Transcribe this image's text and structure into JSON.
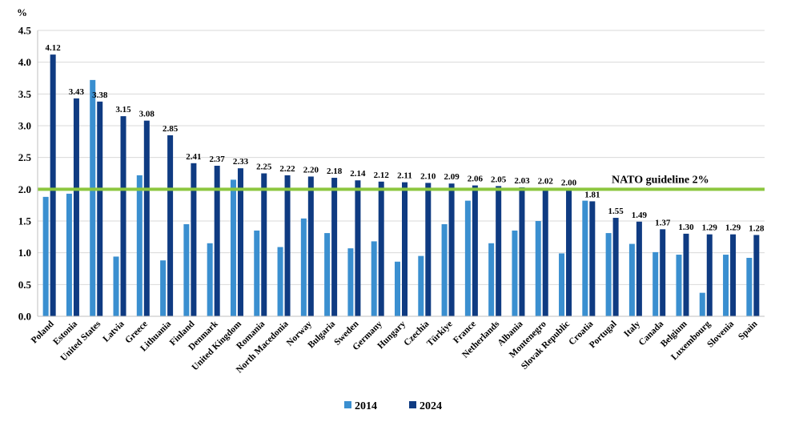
{
  "chart_data": {
    "type": "bar",
    "title": "",
    "ylabel": "%",
    "xlabel": "",
    "ylim": [
      0,
      4.5
    ],
    "yticks": [
      "0.0",
      "0.5",
      "1.0",
      "1.5",
      "2.0",
      "2.5",
      "3.0",
      "3.5",
      "4.0",
      "4.5"
    ],
    "grid": "horizontal",
    "legend_position": "bottom",
    "categories": [
      "Poland",
      "Estonia",
      "United States",
      "Latvia",
      "Greece",
      "Lithuania",
      "Finland",
      "Denmark",
      "United Kingdom",
      "Romania",
      "North Macedonia",
      "Norway",
      "Bulgaria",
      "Sweden",
      "Germany",
      "Hungary",
      "Czechia",
      "Türkiye",
      "France",
      "Netherlands",
      "Albania",
      "Montenegro",
      "Slovak Republic",
      "Croatia",
      "Portugal",
      "Italy",
      "Canada",
      "Belgium",
      "Luxembourg",
      "Slovenia",
      "Spain"
    ],
    "series": [
      {
        "name": "2014",
        "color": "#3a8fd0",
        "values": [
          1.88,
          1.93,
          3.72,
          0.94,
          2.22,
          0.88,
          1.45,
          1.15,
          2.15,
          1.35,
          1.09,
          1.54,
          1.31,
          1.07,
          1.18,
          0.86,
          0.95,
          1.45,
          1.82,
          1.15,
          1.35,
          1.5,
          0.99,
          1.82,
          1.31,
          1.14,
          1.01,
          0.97,
          0.37,
          0.97,
          0.92
        ]
      },
      {
        "name": "2024",
        "color": "#0f3b82",
        "values": [
          4.12,
          3.43,
          3.38,
          3.15,
          3.08,
          2.85,
          2.41,
          2.37,
          2.33,
          2.25,
          2.22,
          2.2,
          2.18,
          2.14,
          2.12,
          2.11,
          2.1,
          2.09,
          2.06,
          2.05,
          2.03,
          2.02,
          2.0,
          1.81,
          1.55,
          1.49,
          1.37,
          1.3,
          1.29,
          1.29,
          1.28
        ],
        "labels": [
          "4.12",
          "3.43",
          "3.38",
          "3.15",
          "3.08",
          "2.85",
          "2.41",
          "2.37",
          "2.33",
          "2.25",
          "2.22",
          "2.20",
          "2.18",
          "2.14",
          "2.12",
          "2.11",
          "2.10",
          "2.09",
          "2.06",
          "2.05",
          "2.03",
          "2.02",
          "2.00",
          "1.81",
          "1.55",
          "1.49",
          "1.37",
          "1.30",
          "1.29",
          "1.29",
          "1.28"
        ]
      }
    ],
    "reference_line": {
      "value": 2.0,
      "label": "NATO guideline 2%",
      "color": "#8cc63f"
    }
  }
}
